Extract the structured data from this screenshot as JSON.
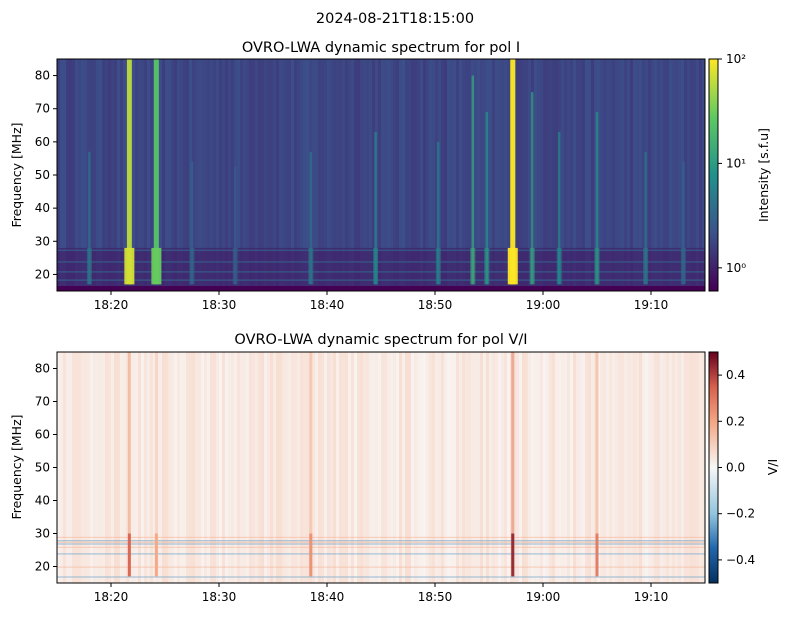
{
  "suptitle": "2024-08-21T18:15:00",
  "chart_data": [
    {
      "type": "heatmap",
      "title": "OVRO-LWA dynamic spectrum for pol I",
      "xlabel": "",
      "ylabel": "Frequency [MHz]",
      "colorbar_label": "Intensity [s.f.u]",
      "colorbar_scale": "log",
      "colormap": "viridis",
      "clim": [
        0.6,
        100
      ],
      "colorbar_ticks": [
        "10⁰",
        "10¹",
        "10²"
      ],
      "ylim": [
        15,
        85
      ],
      "xlim": [
        "18:15",
        "19:15"
      ],
      "x_ticks": [
        "18:20",
        "18:30",
        "18:40",
        "18:50",
        "19:00",
        "19:10"
      ],
      "y_ticks": [
        20,
        30,
        40,
        50,
        60,
        70,
        80
      ],
      "background_level": 1.5,
      "bursts": [
        {
          "time": "18:18",
          "intensity": 4
        },
        {
          "time": "18:21.7",
          "intensity": 60
        },
        {
          "time": "18:24.2",
          "intensity": 25
        },
        {
          "time": "18:27.5",
          "intensity": 3
        },
        {
          "time": "18:31.5",
          "intensity": 2.5
        },
        {
          "time": "18:38.5",
          "intensity": 4
        },
        {
          "time": "18:44.5",
          "intensity": 6
        },
        {
          "time": "18:50.3",
          "intensity": 5
        },
        {
          "time": "18:53.5",
          "intensity": 12
        },
        {
          "time": "18:54.8",
          "intensity": 8
        },
        {
          "time": "18:57.2",
          "intensity": 100
        },
        {
          "time": "18:59",
          "intensity": 10
        },
        {
          "time": "19:01.5",
          "intensity": 6
        },
        {
          "time": "19:05",
          "intensity": 8
        },
        {
          "time": "19:09.5",
          "intensity": 4
        },
        {
          "time": "19:13",
          "intensity": 3
        }
      ]
    },
    {
      "type": "heatmap",
      "title": "OVRO-LWA dynamic spectrum for pol V/I",
      "xlabel": "",
      "ylabel": "Frequency [MHz]",
      "colorbar_label": "V/I",
      "colorbar_scale": "linear",
      "colormap": "RdBu_r",
      "clim": [
        -0.5,
        0.5
      ],
      "colorbar_ticks": [
        "−0.4",
        "−0.2",
        "0.0",
        "0.2",
        "0.4"
      ],
      "ylim": [
        15,
        85
      ],
      "xlim": [
        "18:15",
        "19:15"
      ],
      "x_ticks": [
        "18:20",
        "18:30",
        "18:40",
        "18:50",
        "19:00",
        "19:10"
      ],
      "y_ticks": [
        20,
        30,
        40,
        50,
        60,
        70,
        80
      ],
      "bursts": [
        {
          "time": "18:21.7",
          "value": 0.35
        },
        {
          "time": "18:24.2",
          "value": 0.2
        },
        {
          "time": "18:38.5",
          "value": 0.25
        },
        {
          "time": "18:57.2",
          "value": 0.45
        },
        {
          "time": "19:05",
          "value": 0.3
        }
      ]
    }
  ]
}
